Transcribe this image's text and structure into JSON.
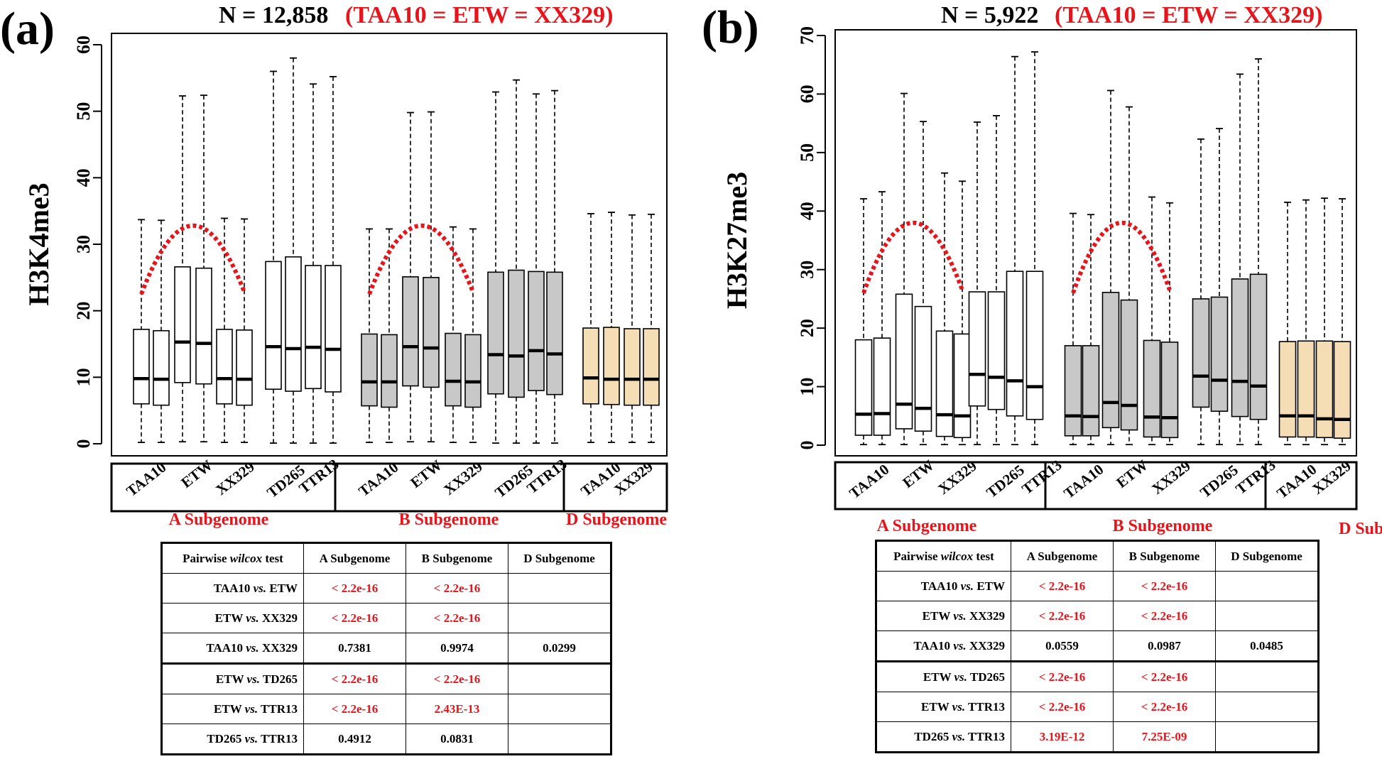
{
  "chart_data": [
    {
      "type": "box",
      "panel_label": "(a)",
      "title_main": "N = 12,858",
      "title_note": "(TAA10 = ETW = XX329)",
      "ylabel": "H3K4me3",
      "xlabel": "",
      "ylim": [
        0,
        60
      ],
      "yticks": [
        0,
        10,
        20,
        30,
        40,
        50,
        60
      ],
      "group_labels": [
        "A Subgenome",
        "B Subgenome",
        "D Subgenome"
      ],
      "category_labels": [
        "TAA10",
        "ETW",
        "XX329",
        "TD265",
        "TTR13",
        "TAA10",
        "ETW",
        "XX329",
        "TD265",
        "TTR13",
        "TAA10",
        "XX329"
      ],
      "boxes": [
        {
          "group": "A",
          "min": 0.2,
          "q1": 6.0,
          "median": 9.8,
          "q3": 17.2,
          "max": 33.7,
          "color": "#ffffff"
        },
        {
          "group": "A",
          "min": 0.2,
          "q1": 5.8,
          "median": 9.7,
          "q3": 17.0,
          "max": 33.6,
          "color": "#ffffff"
        },
        {
          "group": "A",
          "min": 0.3,
          "q1": 9.2,
          "median": 15.3,
          "q3": 26.6,
          "max": 52.3,
          "color": "#ffffff"
        },
        {
          "group": "A",
          "min": 0.3,
          "q1": 9.0,
          "median": 15.1,
          "q3": 26.4,
          "max": 52.4,
          "color": "#ffffff"
        },
        {
          "group": "A",
          "min": 0.2,
          "q1": 6.0,
          "median": 9.8,
          "q3": 17.2,
          "max": 33.9,
          "color": "#ffffff"
        },
        {
          "group": "A",
          "min": 0.2,
          "q1": 5.8,
          "median": 9.7,
          "q3": 17.1,
          "max": 33.8,
          "color": "#ffffff"
        },
        {
          "group": "A",
          "min": 0.1,
          "q1": 8.2,
          "median": 14.6,
          "q3": 27.4,
          "max": 56.0,
          "color": "#ffffff"
        },
        {
          "group": "A",
          "min": 0.1,
          "q1": 7.9,
          "median": 14.3,
          "q3": 28.1,
          "max": 58.0,
          "color": "#ffffff"
        },
        {
          "group": "A",
          "min": 0.1,
          "q1": 8.3,
          "median": 14.5,
          "q3": 26.8,
          "max": 54.1,
          "color": "#ffffff"
        },
        {
          "group": "A",
          "min": 0.1,
          "q1": 7.8,
          "median": 14.2,
          "q3": 26.8,
          "max": 55.2,
          "color": "#ffffff"
        },
        {
          "group": "B",
          "min": 0.2,
          "q1": 5.7,
          "median": 9.3,
          "q3": 16.5,
          "max": 32.3,
          "color": "#c8c8c8"
        },
        {
          "group": "B",
          "min": 0.2,
          "q1": 5.5,
          "median": 9.3,
          "q3": 16.4,
          "max": 32.3,
          "color": "#c8c8c8"
        },
        {
          "group": "B",
          "min": 0.3,
          "q1": 8.7,
          "median": 14.6,
          "q3": 25.1,
          "max": 49.8,
          "color": "#c8c8c8"
        },
        {
          "group": "B",
          "min": 0.3,
          "q1": 8.5,
          "median": 14.4,
          "q3": 25.0,
          "max": 49.9,
          "color": "#c8c8c8"
        },
        {
          "group": "B",
          "min": 0.2,
          "q1": 5.7,
          "median": 9.4,
          "q3": 16.6,
          "max": 32.6,
          "color": "#c8c8c8"
        },
        {
          "group": "B",
          "min": 0.2,
          "q1": 5.5,
          "median": 9.3,
          "q3": 16.4,
          "max": 32.3,
          "color": "#c8c8c8"
        },
        {
          "group": "B",
          "min": 0.1,
          "q1": 7.5,
          "median": 13.4,
          "q3": 25.8,
          "max": 52.9,
          "color": "#c8c8c8"
        },
        {
          "group": "B",
          "min": 0.1,
          "q1": 7.0,
          "median": 13.2,
          "q3": 26.1,
          "max": 54.7,
          "color": "#c8c8c8"
        },
        {
          "group": "B",
          "min": 0.1,
          "q1": 8.0,
          "median": 14.0,
          "q3": 25.9,
          "max": 52.6,
          "color": "#c8c8c8"
        },
        {
          "group": "B",
          "min": 0.1,
          "q1": 7.4,
          "median": 13.5,
          "q3": 25.8,
          "max": 53.1,
          "color": "#c8c8c8"
        },
        {
          "group": "D",
          "min": 0.2,
          "q1": 6.0,
          "median": 9.9,
          "q3": 17.4,
          "max": 34.6,
          "color": "#f5deb5"
        },
        {
          "group": "D",
          "min": 0.2,
          "q1": 5.9,
          "median": 9.7,
          "q3": 17.5,
          "max": 34.8,
          "color": "#f5deb5"
        },
        {
          "group": "D",
          "min": 0.2,
          "q1": 5.8,
          "median": 9.7,
          "q3": 17.3,
          "max": 34.4,
          "color": "#f5deb5"
        },
        {
          "group": "D",
          "min": 0.2,
          "q1": 5.8,
          "median": 9.7,
          "q3": 17.3,
          "max": 34.5,
          "color": "#f5deb5"
        }
      ],
      "trend_curves": [
        {
          "from_box": 0,
          "to_box": 5,
          "start": 22.5,
          "peak": 32.8,
          "end": 22.8,
          "color": "#e8141b"
        },
        {
          "from_box": 10,
          "to_box": 15,
          "start": 22.5,
          "peak": 32.8,
          "end": 22.8,
          "color": "#e8141b"
        }
      ]
    },
    {
      "type": "box",
      "panel_label": "(b)",
      "title_main": "N = 5,922",
      "title_note": "(TAA10 = ETW = XX329)",
      "ylabel": "H3K27me3",
      "xlabel": "",
      "ylim": [
        0,
        70
      ],
      "yticks": [
        0,
        10,
        20,
        30,
        40,
        50,
        60,
        70
      ],
      "group_labels": [
        "A Subgenome",
        "B Subgenome",
        "D Subgenome"
      ],
      "category_labels": [
        "TAA10",
        "ETW",
        "XX329",
        "TD265",
        "TTR13",
        "TAA10",
        "ETW",
        "XX329",
        "TD265",
        "TTR13",
        "TAA10",
        "XX329"
      ],
      "boxes": [
        {
          "group": "A",
          "min": 0.1,
          "q1": 1.7,
          "median": 5.3,
          "q3": 18.0,
          "max": 42.1,
          "color": "#ffffff"
        },
        {
          "group": "A",
          "min": 0.1,
          "q1": 1.7,
          "median": 5.4,
          "q3": 18.3,
          "max": 43.3,
          "color": "#ffffff"
        },
        {
          "group": "A",
          "min": 0.1,
          "q1": 2.8,
          "median": 7.0,
          "q3": 25.8,
          "max": 60.1,
          "color": "#ffffff"
        },
        {
          "group": "A",
          "min": 0.1,
          "q1": 2.4,
          "median": 6.3,
          "q3": 23.7,
          "max": 55.3,
          "color": "#ffffff"
        },
        {
          "group": "A",
          "min": 0.1,
          "q1": 1.5,
          "median": 5.2,
          "q3": 19.5,
          "max": 46.5,
          "color": "#ffffff"
        },
        {
          "group": "A",
          "min": 0.1,
          "q1": 1.3,
          "median": 5.0,
          "q3": 19.0,
          "max": 45.1,
          "color": "#ffffff"
        },
        {
          "group": "A",
          "min": 0.1,
          "q1": 6.7,
          "median": 12.1,
          "q3": 26.2,
          "max": 55.2,
          "color": "#ffffff"
        },
        {
          "group": "A",
          "min": 0.1,
          "q1": 6.1,
          "median": 11.6,
          "q3": 26.2,
          "max": 56.3,
          "color": "#ffffff"
        },
        {
          "group": "A",
          "min": 0.1,
          "q1": 5.0,
          "median": 11.0,
          "q3": 29.7,
          "max": 66.4,
          "color": "#ffffff"
        },
        {
          "group": "A",
          "min": 0.1,
          "q1": 4.4,
          "median": 10.0,
          "q3": 29.7,
          "max": 67.2,
          "color": "#ffffff"
        },
        {
          "group": "B",
          "min": 0.1,
          "q1": 1.6,
          "median": 5.0,
          "q3": 17.0,
          "max": 39.6,
          "color": "#c8c8c8"
        },
        {
          "group": "B",
          "min": 0.1,
          "q1": 1.6,
          "median": 4.9,
          "q3": 17.0,
          "max": 39.4,
          "color": "#c8c8c8"
        },
        {
          "group": "B",
          "min": 0.1,
          "q1": 3.0,
          "median": 7.3,
          "q3": 26.1,
          "max": 60.6,
          "color": "#c8c8c8"
        },
        {
          "group": "B",
          "min": 0.1,
          "q1": 2.6,
          "median": 6.8,
          "q3": 24.8,
          "max": 57.8,
          "color": "#c8c8c8"
        },
        {
          "group": "B",
          "min": 0.1,
          "q1": 1.4,
          "median": 4.8,
          "q3": 17.9,
          "max": 42.4,
          "color": "#c8c8c8"
        },
        {
          "group": "B",
          "min": 0.1,
          "q1": 1.3,
          "median": 4.7,
          "q3": 17.6,
          "max": 41.4,
          "color": "#c8c8c8"
        },
        {
          "group": "B",
          "min": 0.1,
          "q1": 6.5,
          "median": 11.8,
          "q3": 25.0,
          "max": 52.3,
          "color": "#c8c8c8"
        },
        {
          "group": "B",
          "min": 0.1,
          "q1": 5.8,
          "median": 11.1,
          "q3": 25.3,
          "max": 54.1,
          "color": "#c8c8c8"
        },
        {
          "group": "B",
          "min": 0.1,
          "q1": 4.9,
          "median": 10.9,
          "q3": 28.4,
          "max": 63.4,
          "color": "#c8c8c8"
        },
        {
          "group": "B",
          "min": 0.1,
          "q1": 4.4,
          "median": 10.1,
          "q3": 29.2,
          "max": 66.0,
          "color": "#c8c8c8"
        },
        {
          "group": "D",
          "min": 0.1,
          "q1": 1.4,
          "median": 5.0,
          "q3": 17.7,
          "max": 41.5,
          "color": "#f5deb5"
        },
        {
          "group": "D",
          "min": 0.1,
          "q1": 1.4,
          "median": 5.0,
          "q3": 17.8,
          "max": 41.9,
          "color": "#f5deb5"
        },
        {
          "group": "D",
          "min": 0.1,
          "q1": 1.3,
          "median": 4.5,
          "q3": 17.8,
          "max": 42.2,
          "color": "#f5deb5"
        },
        {
          "group": "D",
          "min": 0.1,
          "q1": 1.2,
          "median": 4.4,
          "q3": 17.7,
          "max": 42.1,
          "color": "#f5deb5"
        }
      ],
      "trend_curves": [
        {
          "from_box": 0,
          "to_box": 5,
          "start": 26.0,
          "peak": 38.0,
          "end": 26.5,
          "color": "#e8141b"
        },
        {
          "from_box": 10,
          "to_box": 15,
          "start": 26.0,
          "peak": 38.0,
          "end": 26.5,
          "color": "#e8141b"
        }
      ]
    }
  ],
  "tables": [
    {
      "header": [
        "",
        "A Subgenome",
        "B Subgenome",
        "D Subgenome"
      ],
      "header_first": {
        "pre": "Pairwise ",
        "em": "wilcox",
        "post": " test"
      },
      "rows": [
        {
          "a": "TAA10",
          "b": "ETW",
          "vals": [
            {
              "v": "< 2.2e-16",
              "sig": true
            },
            {
              "v": "< 2.2e-16",
              "sig": true
            },
            {
              "v": "",
              "sig": false
            }
          ]
        },
        {
          "a": "ETW",
          "b": "XX329",
          "vals": [
            {
              "v": "< 2.2e-16",
              "sig": true
            },
            {
              "v": "< 2.2e-16",
              "sig": true
            },
            {
              "v": "",
              "sig": false
            }
          ]
        },
        {
          "a": "TAA10",
          "b": "XX329",
          "vals": [
            {
              "v": "0.7381",
              "sig": false
            },
            {
              "v": "0.9974",
              "sig": false
            },
            {
              "v": "0.0299",
              "sig": false
            }
          ]
        },
        {
          "a": "ETW",
          "b": "TD265",
          "vals": [
            {
              "v": "< 2.2e-16",
              "sig": true
            },
            {
              "v": "< 2.2e-16",
              "sig": true
            },
            {
              "v": "",
              "sig": false
            }
          ],
          "group_start": true
        },
        {
          "a": "ETW",
          "b": "TTR13",
          "vals": [
            {
              "v": "< 2.2e-16",
              "sig": true
            },
            {
              "v": "2.43E-13",
              "sig": true
            },
            {
              "v": "",
              "sig": false
            }
          ]
        },
        {
          "a": "TD265",
          "b": "TTR13",
          "vals": [
            {
              "v": "0.4912",
              "sig": false
            },
            {
              "v": "0.0831",
              "sig": false
            },
            {
              "v": "",
              "sig": false
            }
          ]
        }
      ]
    },
    {
      "header": [
        "",
        "A Subgenome",
        "B Subgenome",
        "D Subgenome"
      ],
      "header_first": {
        "pre": "Pairwise ",
        "em": "wilcox",
        "post": " test"
      },
      "rows": [
        {
          "a": "TAA10",
          "b": "ETW",
          "vals": [
            {
              "v": "< 2.2e-16",
              "sig": true
            },
            {
              "v": "< 2.2e-16",
              "sig": true
            },
            {
              "v": "",
              "sig": false
            }
          ]
        },
        {
          "a": "ETW",
          "b": "XX329",
          "vals": [
            {
              "v": "< 2.2e-16",
              "sig": true
            },
            {
              "v": "< 2.2e-16",
              "sig": true
            },
            {
              "v": "",
              "sig": false
            }
          ]
        },
        {
          "a": "TAA10",
          "b": "XX329",
          "vals": [
            {
              "v": "0.0559",
              "sig": false
            },
            {
              "v": "0.0987",
              "sig": false
            },
            {
              "v": "0.0485",
              "sig": false
            }
          ]
        },
        {
          "a": "ETW",
          "b": "TD265",
          "vals": [
            {
              "v": "< 2.2e-16",
              "sig": true
            },
            {
              "v": "< 2.2e-16",
              "sig": true
            },
            {
              "v": "",
              "sig": false
            }
          ],
          "group_start": true
        },
        {
          "a": "ETW",
          "b": "TTR13",
          "vals": [
            {
              "v": "< 2.2e-16",
              "sig": true
            },
            {
              "v": "< 2.2e-16",
              "sig": true
            },
            {
              "v": "",
              "sig": false
            }
          ]
        },
        {
          "a": "TD265",
          "b": "TTR13",
          "vals": [
            {
              "v": "3.19E-12",
              "sig": true
            },
            {
              "v": "7.25E-09",
              "sig": true
            },
            {
              "v": "",
              "sig": false
            }
          ]
        }
      ]
    }
  ],
  "vs_text": "vs."
}
